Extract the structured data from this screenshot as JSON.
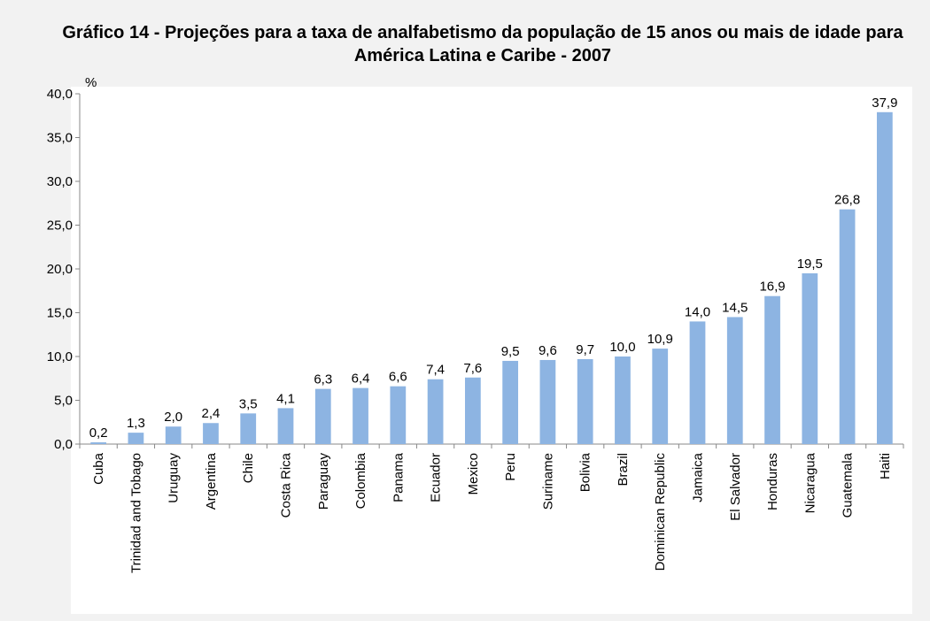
{
  "chart_data": {
    "type": "bar",
    "title": "Gráfico 14 - Projeções para a taxa de analfabetismo da população de 15 anos ou mais de idade para América Latina e Caribe - 2007",
    "y_label": "%",
    "categories": [
      "Cuba",
      "Trinidad and Tobago",
      "Uruguay",
      "Argentina",
      "Chile",
      "Costa Rica",
      "Paraguay",
      "Colombia",
      "Panama",
      "Ecuador",
      "Mexico",
      "Peru",
      "Suriname",
      "Bolivia",
      "Brazil",
      "Dominican Republic",
      "Jamaica",
      "El Salvador",
      "Honduras",
      "Nicaragua",
      "Guatemala",
      "Haiti"
    ],
    "values": [
      0.2,
      1.3,
      2.0,
      2.4,
      3.5,
      4.1,
      6.3,
      6.4,
      6.6,
      7.4,
      7.6,
      9.5,
      9.6,
      9.7,
      10.0,
      10.9,
      14.0,
      14.5,
      16.9,
      19.5,
      26.8,
      37.9
    ],
    "value_labels": [
      "0,2",
      "1,3",
      "2,0",
      "2,4",
      "3,5",
      "4,1",
      "6,3",
      "6,4",
      "6,6",
      "7,4",
      "7,6",
      "9,5",
      "9,6",
      "9,7",
      "10,0",
      "10,9",
      "14,0",
      "14,5",
      "16,9",
      "19,5",
      "26,8",
      "37,9"
    ],
    "color": "#8db4e2",
    "ylim": [
      0,
      40
    ],
    "yticks": [
      {
        "value": 0,
        "label": "0,0"
      },
      {
        "value": 5,
        "label": "5,0"
      },
      {
        "value": 10,
        "label": "10,0"
      },
      {
        "value": 15,
        "label": "15,0"
      },
      {
        "value": 20,
        "label": "20,0"
      },
      {
        "value": 25,
        "label": "25,0"
      },
      {
        "value": 30,
        "label": "30,0"
      },
      {
        "value": 35,
        "label": "35,0"
      },
      {
        "value": 40,
        "label": "40,0"
      }
    ],
    "grid": false
  }
}
